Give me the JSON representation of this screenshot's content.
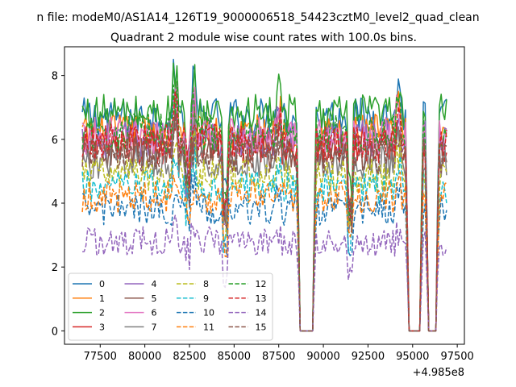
{
  "figure": {
    "suptitle": "n file: modeM0/AS1A14_126T19_9000006518_54423cztM0_level2_quad_clean",
    "title": "Quadrant 2 module wise count rates with 100.0s bins."
  },
  "chart_data": {
    "type": "line",
    "title": "Quadrant 2 module wise count rates with 100.0s bins.",
    "xlabel": "",
    "ylabel": "",
    "x_offset_label": "+4.985e8",
    "xlim": [
      75500,
      97900
    ],
    "ylim": [
      -0.42,
      8.9
    ],
    "xticks": [
      77500,
      80000,
      82500,
      85000,
      87500,
      90000,
      92500,
      95000,
      97500
    ],
    "yticks": [
      0,
      2,
      4,
      6,
      8
    ],
    "x_range": [
      76500,
      96900
    ],
    "bin_seconds": 100,
    "data_gaps": [
      {
        "x_start": 88700,
        "x_end": 89400
      },
      {
        "x_start": 94800,
        "x_end": 95400
      },
      {
        "x_start": 95900,
        "x_end": 96300
      }
    ],
    "series": [
      {
        "name": "0",
        "color": "#1f77b4",
        "dash": "solid",
        "base": 6.7
      },
      {
        "name": "1",
        "color": "#ff7f0e",
        "dash": "solid",
        "base": 6.2
      },
      {
        "name": "2",
        "color": "#2ca02c",
        "dash": "solid",
        "base": 6.8
      },
      {
        "name": "3",
        "color": "#d62728",
        "dash": "solid",
        "base": 5.8
      },
      {
        "name": "4",
        "color": "#9467bd",
        "dash": "solid",
        "base": 6.0
      },
      {
        "name": "5",
        "color": "#8c564b",
        "dash": "solid",
        "base": 5.6
      },
      {
        "name": "6",
        "color": "#e377c2",
        "dash": "solid",
        "base": 6.1
      },
      {
        "name": "7",
        "color": "#7f7f7f",
        "dash": "solid",
        "base": 5.3
      },
      {
        "name": "8",
        "color": "#bcbd22",
        "dash": "dashed",
        "base": 4.9
      },
      {
        "name": "9",
        "color": "#17becf",
        "dash": "dashed",
        "base": 4.5
      },
      {
        "name": "10",
        "color": "#1f77b4",
        "dash": "dashed",
        "base": 3.8
      },
      {
        "name": "11",
        "color": "#ff7f0e",
        "dash": "dashed",
        "base": 4.2
      },
      {
        "name": "12",
        "color": "#2ca02c",
        "dash": "dashed",
        "base": 6.2
      },
      {
        "name": "13",
        "color": "#d62728",
        "dash": "dashed",
        "base": 5.9
      },
      {
        "name": "14",
        "color": "#9467bd",
        "dash": "dashed",
        "base": 2.8
      },
      {
        "name": "15",
        "color": "#8c564b",
        "dash": "dashed",
        "base": 5.5
      }
    ],
    "legend": {
      "position": "lower-left",
      "ncol": 4
    }
  }
}
